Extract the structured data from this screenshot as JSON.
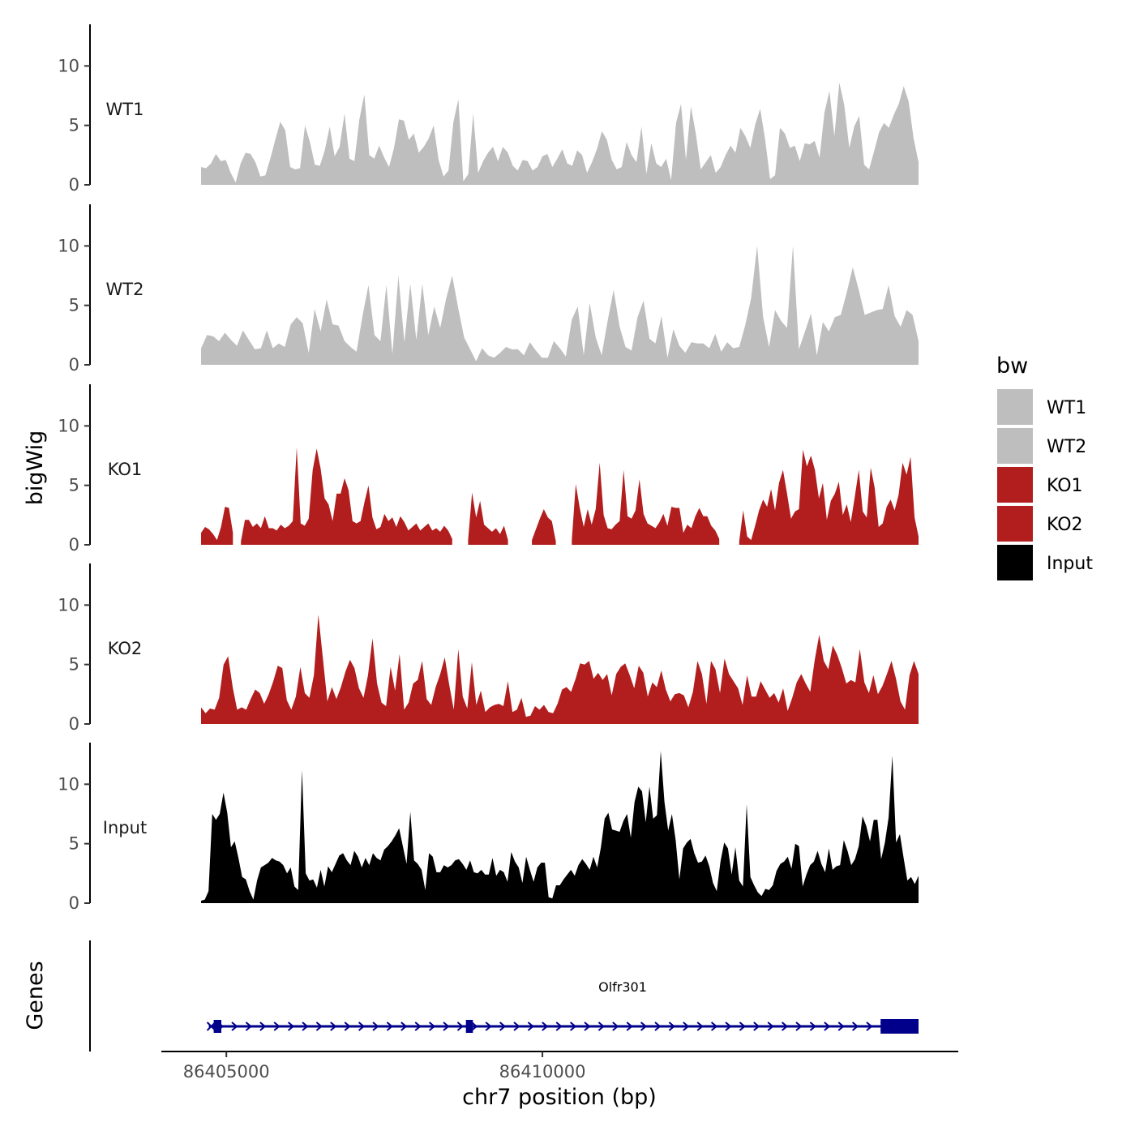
{
  "chart_data": {
    "type": "area",
    "ylabel": "bigWig",
    "xlabel": "chr7 position (bp)",
    "x_ticks": [
      86405000,
      86410000
    ],
    "x_tick_labels": [
      "86405000",
      "86410000"
    ],
    "xlim": [
      86403850,
      86416400
    ],
    "data_range": [
      86404600,
      86415950
    ],
    "ylim": [
      0,
      13.5
    ],
    "y_ticks": [
      0,
      5,
      10
    ],
    "y_tick_labels": [
      "0",
      "5",
      "10"
    ],
    "legend": {
      "title": "bw",
      "position": "right",
      "items": [
        {
          "label": "WT1",
          "color": "#bebebe"
        },
        {
          "label": "WT2",
          "color": "#bebebe"
        },
        {
          "label": "KO1",
          "color": "#b21e1e"
        },
        {
          "label": "KO2",
          "color": "#b21e1e"
        },
        {
          "label": "Input",
          "color": "#000000"
        }
      ]
    },
    "series": [
      {
        "name": "WT1",
        "color": "#bebebe",
        "values": [
          1.5,
          1.4,
          1.8,
          2.6,
          2.0,
          2.1,
          1.0,
          0.2,
          1.8,
          2.7,
          2.6,
          1.9,
          0.7,
          0.8,
          2.2,
          3.8,
          5.3,
          4.6,
          1.5,
          1.3,
          1.4,
          5.0,
          3.6,
          1.7,
          1.6,
          2.9,
          4.9,
          2.4,
          3.2,
          6.0,
          2.2,
          2.0,
          5.5,
          7.6,
          2.5,
          2.2,
          3.3,
          2.3,
          1.5,
          3.1,
          5.5,
          5.4,
          3.8,
          4.3,
          2.7,
          3.2,
          3.9,
          5.0,
          2.1,
          0.7,
          1.2,
          5.3,
          7.2,
          0.3,
          0.9,
          6.0,
          1.0,
          2.0,
          2.7,
          3.2,
          2.0,
          3.2,
          2.7,
          1.6,
          1.2,
          2.1,
          2.0,
          1.2,
          1.5,
          2.4,
          2.6,
          1.5,
          2.2,
          3.0,
          1.8,
          1.6,
          2.9,
          2.5,
          1.0,
          1.9,
          3.0,
          4.5,
          3.8,
          2.1,
          1.3,
          1.5,
          3.6,
          2.5,
          1.9,
          4.9,
          0.9,
          3.5,
          1.8,
          1.5,
          2.2,
          0.4,
          5.2,
          6.8,
          2.1,
          6.6,
          4.3,
          1.3,
          1.9,
          2.5,
          1.0,
          1.5,
          2.5,
          3.3,
          2.7,
          4.8,
          4.1,
          3.1,
          5.1,
          6.4,
          3.8,
          0.5,
          0.8,
          4.8,
          4.3,
          3.1,
          3.3,
          2.0,
          3.5,
          3.4,
          3.7,
          2.3,
          6.1,
          7.9,
          4.1,
          8.6,
          6.7,
          3.1,
          4.9,
          5.8,
          1.7,
          1.3,
          2.8,
          4.4,
          5.2,
          4.8,
          5.9,
          6.8,
          8.3,
          7.0,
          3.9,
          1.9
        ]
      },
      {
        "name": "WT2",
        "color": "#bebebe",
        "values": [
          1.4,
          2.5,
          2.4,
          2.0,
          2.7,
          2.1,
          1.6,
          2.9,
          2.1,
          1.3,
          1.4,
          2.9,
          1.4,
          1.8,
          1.5,
          3.4,
          4.0,
          3.5,
          1.0,
          4.7,
          2.8,
          5.5,
          3.4,
          3.3,
          2.0,
          1.5,
          1.1,
          4.1,
          6.7,
          2.5,
          2.0,
          6.7,
          0.9,
          7.5,
          1.9,
          6.8,
          2.1,
          6.8,
          2.5,
          4.9,
          3.1,
          5.6,
          7.5,
          4.8,
          2.3,
          1.3,
          0.3,
          1.4,
          0.8,
          0.6,
          1.0,
          1.5,
          1.3,
          1.3,
          0.8,
          1.9,
          1.2,
          0.6,
          0.6,
          2.0,
          1.4,
          0.7,
          3.8,
          4.9,
          0.8,
          5.2,
          2.3,
          0.8,
          3.7,
          6.3,
          3.2,
          1.5,
          1.2,
          4.0,
          5.4,
          2.2,
          1.8,
          4.1,
          0.6,
          3.0,
          1.6,
          1.0,
          1.9,
          1.8,
          1.8,
          1.4,
          2.6,
          1.1,
          1.9,
          1.4,
          1.5,
          3.3,
          5.6,
          10.0,
          4.0,
          1.5,
          4.6,
          3.7,
          3.1,
          10.0,
          1.3,
          2.8,
          4.3,
          0.8,
          3.6,
          2.8,
          4.0,
          4.2,
          6.1,
          8.2,
          6.3,
          4.2,
          4.4,
          4.6,
          4.7,
          6.7,
          4.1,
          3.2,
          4.6,
          4.2,
          2.0
        ]
      },
      {
        "name": "KO1",
        "color": "#b21e1e",
        "segments": [
          {
            "start": 0,
            "values": [
              1.0,
              1.5,
              1.3,
              0.9,
              0.4,
              1.5,
              3.2,
              3.1,
              1.0
            ]
          },
          {
            "start": 10,
            "values": [
              0.3,
              2.1,
              2.1,
              1.5,
              1.8,
              1.4,
              2.4,
              1.4,
              1.4,
              1.2,
              1.7,
              1.4,
              1.6,
              2.0,
              8.2,
              1.8,
              1.6,
              2.2,
              6.3,
              8.1,
              6.4,
              3.9,
              3.4,
              2.0,
              4.3,
              4.3,
              5.6,
              4.6,
              2.0,
              1.8,
              2.0,
              3.6,
              5.0,
              2.3,
              1.3,
              1.5,
              2.6,
              2.0,
              2.3,
              1.5,
              2.4,
              1.9,
              1.2,
              1.5,
              1.8,
              1.2,
              1.5,
              1.8,
              1.2,
              1.4,
              1.1,
              1.6,
              1.2,
              0.5
            ]
          },
          {
            "start": 67,
            "values": [
              0.4,
              4.4,
              2.3,
              3.7,
              1.7,
              1.4,
              1.1,
              1.4,
              0.9,
              1.6,
              0.4
            ]
          },
          {
            "start": 83,
            "values": [
              0.4,
              1.3,
              2.2,
              3.0,
              2.3,
              2.0,
              0.3
            ]
          },
          {
            "start": 93,
            "values": [
              0.4,
              5.1,
              3.1,
              1.5,
              3.0,
              1.7,
              3.0,
              6.9,
              2.5,
              1.4,
              1.3,
              1.7,
              2.0,
              6.3,
              2.4,
              2.2,
              2.9,
              5.5,
              2.6,
              1.8,
              1.6,
              1.4,
              1.9,
              2.6,
              1.6,
              3.2,
              3.1,
              3.1,
              1.0,
              1.7,
              1.4,
              2.4,
              3.1,
              2.4,
              2.4,
              1.6,
              1.2,
              0.5
            ]
          },
          {
            "start": 135,
            "values": [
              0.3,
              2.9,
              0.7,
              0.4,
              1.6,
              2.9,
              3.8,
              3.2,
              4.7,
              2.9,
              5.2,
              6.3,
              4.3,
              2.2,
              2.8,
              3.0,
              8.0,
              6.6,
              7.5,
              6.3,
              3.9,
              5.2,
              2.1,
              3.7,
              4.3,
              5.3,
              2.5,
              3.4,
              1.9,
              4.0,
              6.3,
              2.8,
              2.3,
              6.5,
              4.8,
              1.5,
              1.8,
              3.2,
              3.8,
              2.9,
              4.2,
              6.9,
              5.9,
              7.4,
              2.3,
              0.7
            ]
          }
        ]
      },
      {
        "name": "KO2",
        "color": "#b21e1e",
        "values": [
          1.4,
          0.9,
          1.3,
          1.2,
          2.2,
          5.0,
          5.7,
          3.1,
          1.2,
          1.4,
          1.2,
          2.1,
          2.9,
          2.6,
          1.7,
          2.5,
          3.6,
          4.9,
          4.7,
          2.0,
          1.2,
          2.3,
          4.8,
          2.6,
          2.2,
          4.1,
          9.2,
          5.5,
          1.9,
          3.1,
          2.1,
          3.1,
          4.4,
          5.4,
          4.7,
          3.0,
          2.2,
          4.1,
          7.2,
          3.4,
          1.8,
          1.5,
          4.8,
          2.8,
          5.9,
          1.2,
          1.8,
          3.4,
          3.7,
          5.3,
          2.1,
          1.6,
          3.1,
          4.2,
          5.6,
          3.3,
          1.2,
          6.3,
          2.3,
          1.3,
          5.2,
          1.6,
          2.8,
          1.0,
          1.4,
          1.6,
          1.7,
          1.5,
          3.6,
          1.0,
          1.2,
          2.2,
          0.6,
          0.7,
          1.5,
          1.2,
          1.6,
          1.0,
          0.9,
          1.7,
          2.9,
          3.1,
          2.7,
          3.8,
          5.1,
          5.0,
          5.3,
          3.8,
          4.3,
          3.7,
          4.2,
          2.4,
          4.2,
          4.8,
          5.1,
          4.1,
          3.0,
          4.9,
          4.3,
          2.3,
          3.5,
          3.1,
          4.5,
          2.9,
          1.9,
          2.5,
          2.6,
          2.4,
          1.4,
          2.7,
          5.3,
          4.2,
          1.7,
          5.3,
          4.6,
          2.6,
          5.5,
          4.2,
          3.6,
          3.0,
          1.6,
          4.1,
          2.3,
          2.3,
          3.6,
          2.9,
          2.2,
          2.6,
          1.8,
          3.0,
          1.1,
          2.2,
          3.5,
          4.2,
          3.4,
          2.7,
          5.4,
          7.5,
          5.3,
          4.6,
          6.6,
          5.8,
          4.7,
          3.4,
          3.7,
          3.5,
          6.3,
          3.5,
          2.6,
          4.1,
          2.5,
          3.2,
          4.2,
          5.3,
          3.8,
          1.9,
          1.2,
          4.1,
          5.3,
          4.2
        ]
      },
      {
        "name": "Input",
        "color": "#000000",
        "values": [
          0.2,
          0.3,
          1.0,
          7.5,
          7.0,
          7.5,
          9.3,
          7.6,
          4.7,
          5.2,
          3.8,
          2.2,
          2.0,
          1.0,
          0.3,
          1.9,
          3.0,
          3.2,
          3.4,
          3.8,
          3.6,
          3.5,
          3.2,
          2.5,
          3.0,
          1.4,
          1.1,
          11.2,
          2.5,
          1.9,
          2.0,
          1.3,
          2.8,
          1.4,
          3.1,
          2.6,
          3.3,
          4.0,
          4.2,
          3.6,
          3.2,
          4.4,
          3.9,
          3.0,
          3.8,
          3.2,
          4.2,
          3.8,
          3.6,
          4.5,
          4.8,
          5.2,
          5.7,
          6.3,
          4.8,
          3.3,
          7.7,
          3.6,
          3.3,
          2.8,
          1.1,
          4.2,
          3.9,
          2.6,
          2.6,
          3.2,
          3.0,
          3.2,
          3.6,
          3.7,
          3.3,
          2.8,
          3.6,
          2.6,
          2.5,
          2.8,
          2.4,
          2.4,
          3.8,
          2.3,
          2.8,
          2.6,
          1.8,
          4.3,
          3.5,
          3.0,
          1.7,
          3.9,
          2.8,
          1.8,
          3.0,
          3.4,
          3.4,
          0.5,
          0.4,
          1.5,
          1.5,
          2.0,
          2.4,
          2.8,
          2.3,
          3.2,
          3.7,
          3.3,
          2.8,
          3.9,
          3.0,
          4.7,
          7.1,
          7.6,
          6.2,
          6.1,
          6.0,
          6.9,
          7.5,
          5.5,
          8.5,
          9.8,
          9.4,
          6.8,
          9.8,
          7.1,
          7.4,
          12.8,
          8.5,
          6.1,
          7.5,
          5.3,
          2.0,
          4.6,
          5.1,
          5.4,
          4.2,
          3.4,
          3.5,
          4.0,
          3.1,
          1.7,
          1.0,
          3.5,
          5.1,
          4.6,
          2.4,
          4.7,
          1.9,
          1.4,
          8.3,
          2.2,
          1.5,
          0.9,
          0.6,
          1.2,
          1.1,
          1.5,
          2.7,
          3.3,
          3.5,
          3.9,
          2.9,
          5.0,
          4.8,
          1.4,
          2.4,
          3.2,
          3.5,
          4.4,
          3.3,
          2.6,
          4.6,
          2.8,
          3.1,
          3.2,
          5.3,
          4.4,
          3.2,
          3.7,
          4.8,
          7.3,
          6.5,
          5.2,
          7.0,
          7.0,
          3.7,
          5.1,
          7.2,
          12.4,
          5.1,
          5.8,
          3.8,
          1.9,
          2.2,
          1.6,
          2.3
        ]
      }
    ],
    "gene_track": {
      "ylabel": "Genes",
      "gene_name": "Olfr301",
      "strand": "+",
      "color": "#00008b",
      "start": 86404800,
      "end": 86415950,
      "exons": [
        [
          86404800,
          86404920
        ],
        [
          86408790,
          86408900
        ],
        [
          86415350,
          86415950
        ]
      ]
    }
  }
}
